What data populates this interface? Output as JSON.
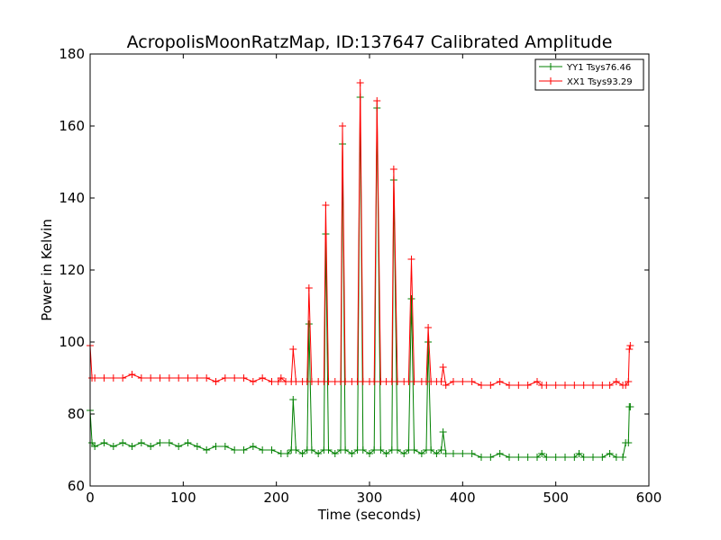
{
  "chart_data": {
    "type": "line",
    "title": "AcropolisMoonRatzMap, ID:137647 Calibrated Amplitude",
    "xlabel": "Time (seconds)",
    "ylabel": "Power in Kelvin",
    "xlim": [
      0,
      600
    ],
    "ylim": [
      60,
      180
    ],
    "xticks": [
      "0",
      "100",
      "200",
      "300",
      "400",
      "500",
      "600"
    ],
    "yticks": [
      "60",
      "80",
      "100",
      "120",
      "140",
      "160",
      "180"
    ],
    "grid": false,
    "legend_position": "top-right",
    "series": [
      {
        "name": "YY1 Tsys76.46",
        "color": "#008000",
        "marker": "+",
        "x": [
          0,
          2,
          5,
          15,
          25,
          35,
          45,
          55,
          65,
          75,
          85,
          95,
          105,
          115,
          125,
          135,
          145,
          155,
          165,
          175,
          185,
          195,
          205,
          212,
          216,
          218,
          221,
          228,
          233,
          235,
          238,
          245,
          251,
          253,
          256,
          263,
          269,
          271,
          274,
          281,
          287,
          290,
          293,
          300,
          305,
          308,
          312,
          318,
          324,
          326,
          330,
          337,
          342,
          345,
          348,
          356,
          361,
          363,
          366,
          372,
          377,
          379,
          382,
          390,
          400,
          410,
          420,
          430,
          440,
          450,
          460,
          470,
          480,
          485,
          490,
          500,
          510,
          520,
          525,
          530,
          540,
          550,
          558,
          565,
          572,
          575,
          578,
          579,
          580
        ],
        "y": [
          81,
          72,
          71,
          72,
          71,
          72,
          71,
          72,
          71,
          72,
          72,
          71,
          72,
          71,
          70,
          71,
          71,
          70,
          70,
          71,
          70,
          70,
          69,
          69,
          70,
          84,
          70,
          69,
          70,
          105,
          70,
          69,
          70,
          130,
          70,
          69,
          70,
          155,
          70,
          69,
          70,
          168,
          70,
          69,
          70,
          165,
          70,
          69,
          70,
          145,
          70,
          69,
          70,
          112,
          70,
          69,
          70,
          100,
          70,
          69,
          70,
          75,
          69,
          69,
          69,
          69,
          68,
          68,
          69,
          68,
          68,
          68,
          68,
          69,
          68,
          68,
          68,
          68,
          69,
          68,
          68,
          68,
          69,
          68,
          68,
          72,
          72,
          82,
          82
        ]
      },
      {
        "name": "XX1 Tsys93.29",
        "color": "#ff0000",
        "marker": "+",
        "x": [
          0,
          2,
          5,
          15,
          25,
          35,
          45,
          55,
          65,
          75,
          85,
          95,
          105,
          115,
          125,
          135,
          145,
          155,
          165,
          175,
          185,
          195,
          202,
          205,
          210,
          216,
          218,
          221,
          228,
          233,
          235,
          238,
          245,
          251,
          253,
          256,
          263,
          269,
          271,
          274,
          281,
          287,
          290,
          293,
          300,
          305,
          308,
          312,
          318,
          324,
          326,
          330,
          337,
          342,
          345,
          348,
          356,
          361,
          363,
          366,
          372,
          377,
          379,
          382,
          390,
          400,
          410,
          420,
          430,
          440,
          450,
          460,
          470,
          480,
          485,
          490,
          500,
          510,
          520,
          530,
          540,
          550,
          558,
          565,
          572,
          575,
          578,
          579,
          580
        ],
        "y": [
          99,
          90,
          90,
          90,
          90,
          90,
          91,
          90,
          90,
          90,
          90,
          90,
          90,
          90,
          90,
          89,
          90,
          90,
          90,
          89,
          90,
          89,
          89,
          90,
          89,
          89,
          98,
          89,
          89,
          89,
          115,
          89,
          89,
          89,
          138,
          89,
          89,
          89,
          160,
          89,
          89,
          89,
          172,
          89,
          89,
          89,
          167,
          89,
          89,
          89,
          148,
          89,
          89,
          89,
          123,
          89,
          89,
          89,
          104,
          89,
          89,
          89,
          93,
          88,
          89,
          89,
          89,
          88,
          88,
          89,
          88,
          88,
          88,
          89,
          88,
          88,
          88,
          88,
          88,
          88,
          88,
          88,
          88,
          89,
          88,
          88,
          89,
          98,
          99
        ]
      }
    ]
  }
}
